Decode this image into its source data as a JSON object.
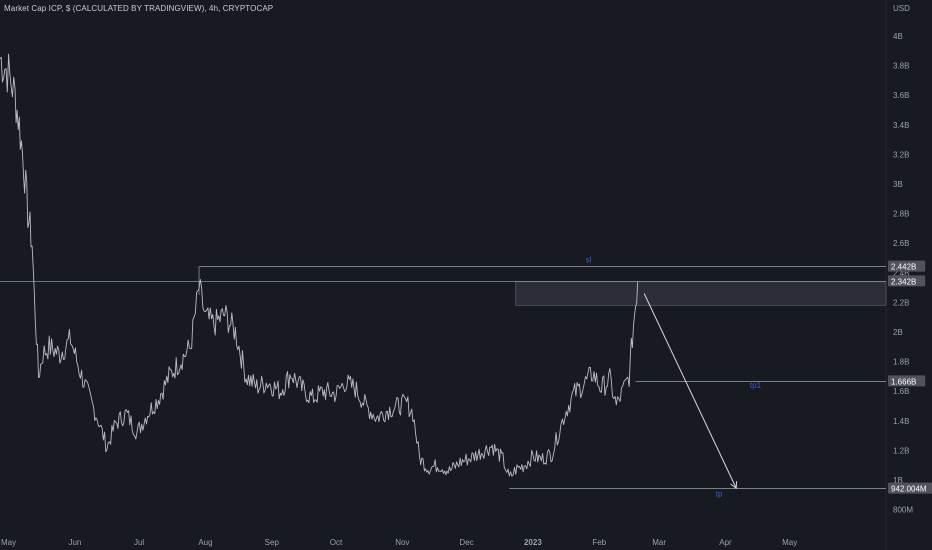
{
  "header": {
    "title": "Market Cap ICP, $ (CALCULATED BY TRADINGVIEW), 4h, CRYPTOCAP"
  },
  "colors": {
    "background": "#181a21",
    "price_line": "#b9bcc4",
    "grid": "#1f222b",
    "axis_text": "#9aa0ab",
    "level_line": "#8a8f99",
    "annotation_text": "#3d5fd1",
    "zone_fill": "#2f313a",
    "arrow": "#d6d8de",
    "label_bg": "#50535c",
    "label_text": "#ffffff"
  },
  "chart_data": {
    "type": "line",
    "currency_label": "USD",
    "y_ticks": [
      "4B",
      "3.8B",
      "3.6B",
      "3.4B",
      "3.2B",
      "3B",
      "2.8B",
      "2.6B",
      "2.4B",
      "2.2B",
      "2B",
      "1.8B",
      "1.6B",
      "1.4B",
      "1.2B",
      "1B",
      "800M"
    ],
    "y_tick_values": [
      4.0,
      3.8,
      3.6,
      3.4,
      3.2,
      3.0,
      2.8,
      2.6,
      2.4,
      2.2,
      2.0,
      1.8,
      1.6,
      1.4,
      1.2,
      1.0,
      0.8
    ],
    "x_ticks": [
      "May",
      "Jun",
      "Jul",
      "Aug",
      "Sep",
      "Oct",
      "Nov",
      "Dec",
      "2023",
      "Feb",
      "Mar",
      "Apr",
      "May"
    ],
    "x_tick_dates": [
      "2022-05-01",
      "2022-06-01",
      "2022-07-01",
      "2022-08-01",
      "2022-09-01",
      "2022-10-01",
      "2022-11-01",
      "2022-12-01",
      "2023-01-01",
      "2023-02-01",
      "2023-03-01",
      "2023-04-01",
      "2023-05-01"
    ],
    "series": [
      {
        "values_billions": [
          [
            "2022-04-27",
            3.85
          ],
          [
            "2022-05-01",
            3.75
          ],
          [
            "2022-05-04",
            3.6
          ],
          [
            "2022-05-06",
            3.4
          ],
          [
            "2022-05-08",
            3.15
          ],
          [
            "2022-05-10",
            2.8
          ],
          [
            "2022-05-12",
            2.6
          ],
          [
            "2022-05-13",
            2.25
          ],
          [
            "2022-05-15",
            1.7
          ],
          [
            "2022-05-17",
            1.85
          ],
          [
            "2022-05-20",
            1.9
          ],
          [
            "2022-05-25",
            1.85
          ],
          [
            "2022-05-30",
            1.95
          ],
          [
            "2022-06-03",
            1.75
          ],
          [
            "2022-06-08",
            1.55
          ],
          [
            "2022-06-12",
            1.4
          ],
          [
            "2022-06-16",
            1.22
          ],
          [
            "2022-06-20",
            1.38
          ],
          [
            "2022-06-25",
            1.45
          ],
          [
            "2022-06-30",
            1.32
          ],
          [
            "2022-07-05",
            1.45
          ],
          [
            "2022-07-10",
            1.55
          ],
          [
            "2022-07-15",
            1.7
          ],
          [
            "2022-07-20",
            1.8
          ],
          [
            "2022-07-25",
            1.9
          ],
          [
            "2022-07-29",
            2.3
          ],
          [
            "2022-08-01",
            2.1
          ],
          [
            "2022-08-05",
            2.05
          ],
          [
            "2022-08-10",
            2.12
          ],
          [
            "2022-08-15",
            2.0
          ],
          [
            "2022-08-20",
            1.7
          ],
          [
            "2022-08-25",
            1.63
          ],
          [
            "2022-08-30",
            1.66
          ],
          [
            "2022-09-05",
            1.6
          ],
          [
            "2022-09-10",
            1.72
          ],
          [
            "2022-09-15",
            1.62
          ],
          [
            "2022-09-20",
            1.55
          ],
          [
            "2022-09-25",
            1.6
          ],
          [
            "2022-10-01",
            1.58
          ],
          [
            "2022-10-05",
            1.66
          ],
          [
            "2022-10-10",
            1.62
          ],
          [
            "2022-10-15",
            1.5
          ],
          [
            "2022-10-20",
            1.42
          ],
          [
            "2022-10-25",
            1.47
          ],
          [
            "2022-10-30",
            1.5
          ],
          [
            "2022-11-03",
            1.52
          ],
          [
            "2022-11-06",
            1.45
          ],
          [
            "2022-11-09",
            1.15
          ],
          [
            "2022-11-13",
            1.08
          ],
          [
            "2022-11-18",
            1.1
          ],
          [
            "2022-11-23",
            1.06
          ],
          [
            "2022-11-28",
            1.12
          ],
          [
            "2022-12-03",
            1.15
          ],
          [
            "2022-12-08",
            1.19
          ],
          [
            "2022-12-13",
            1.23
          ],
          [
            "2022-12-18",
            1.14
          ],
          [
            "2022-12-21",
            1.01
          ],
          [
            "2022-12-24",
            1.07
          ],
          [
            "2022-12-28",
            1.1
          ],
          [
            "2023-01-01",
            1.16
          ],
          [
            "2023-01-05",
            1.14
          ],
          [
            "2023-01-10",
            1.18
          ],
          [
            "2023-01-13",
            1.32
          ],
          [
            "2023-01-16",
            1.45
          ],
          [
            "2023-01-20",
            1.58
          ],
          [
            "2023-01-25",
            1.65
          ],
          [
            "2023-01-29",
            1.72
          ],
          [
            "2023-02-02",
            1.62
          ],
          [
            "2023-02-06",
            1.68
          ],
          [
            "2023-02-09",
            1.5
          ],
          [
            "2023-02-12",
            1.6
          ],
          [
            "2023-02-15",
            1.7
          ],
          [
            "2023-02-17",
            2.05
          ],
          [
            "2023-02-19",
            2.34
          ]
        ]
      }
    ],
    "horizontal_levels": [
      {
        "label": "2.442B",
        "value": 2.442,
        "from": "2022-07-29"
      },
      {
        "label": "2.342B",
        "value": 2.342,
        "from": "2022-04-27"
      },
      {
        "label": "1.666B",
        "value": 1.666,
        "from": "2023-02-18"
      },
      {
        "label": "942.004M",
        "value": 0.942,
        "from": "2022-12-21"
      }
    ],
    "zone": {
      "from": "2022-12-24",
      "to": "2023-06-15",
      "high": 2.34,
      "low": 2.18
    },
    "arrow": {
      "from_date": "2023-02-22",
      "from_value": 2.26,
      "to_date": "2023-04-06",
      "to_value": 0.945
    },
    "annotations": [
      {
        "text": "sl",
        "date": "2023-01-27",
        "value": 2.47
      },
      {
        "text": "tp1",
        "date": "2023-04-15",
        "value": 1.62
      },
      {
        "text": "tp",
        "date": "2023-03-29",
        "value": 0.89
      }
    ],
    "y_range_billions": [
      0.7,
      4.2
    ],
    "x_range": [
      "2022-04-27",
      "2023-06-15"
    ],
    "grid": false
  }
}
